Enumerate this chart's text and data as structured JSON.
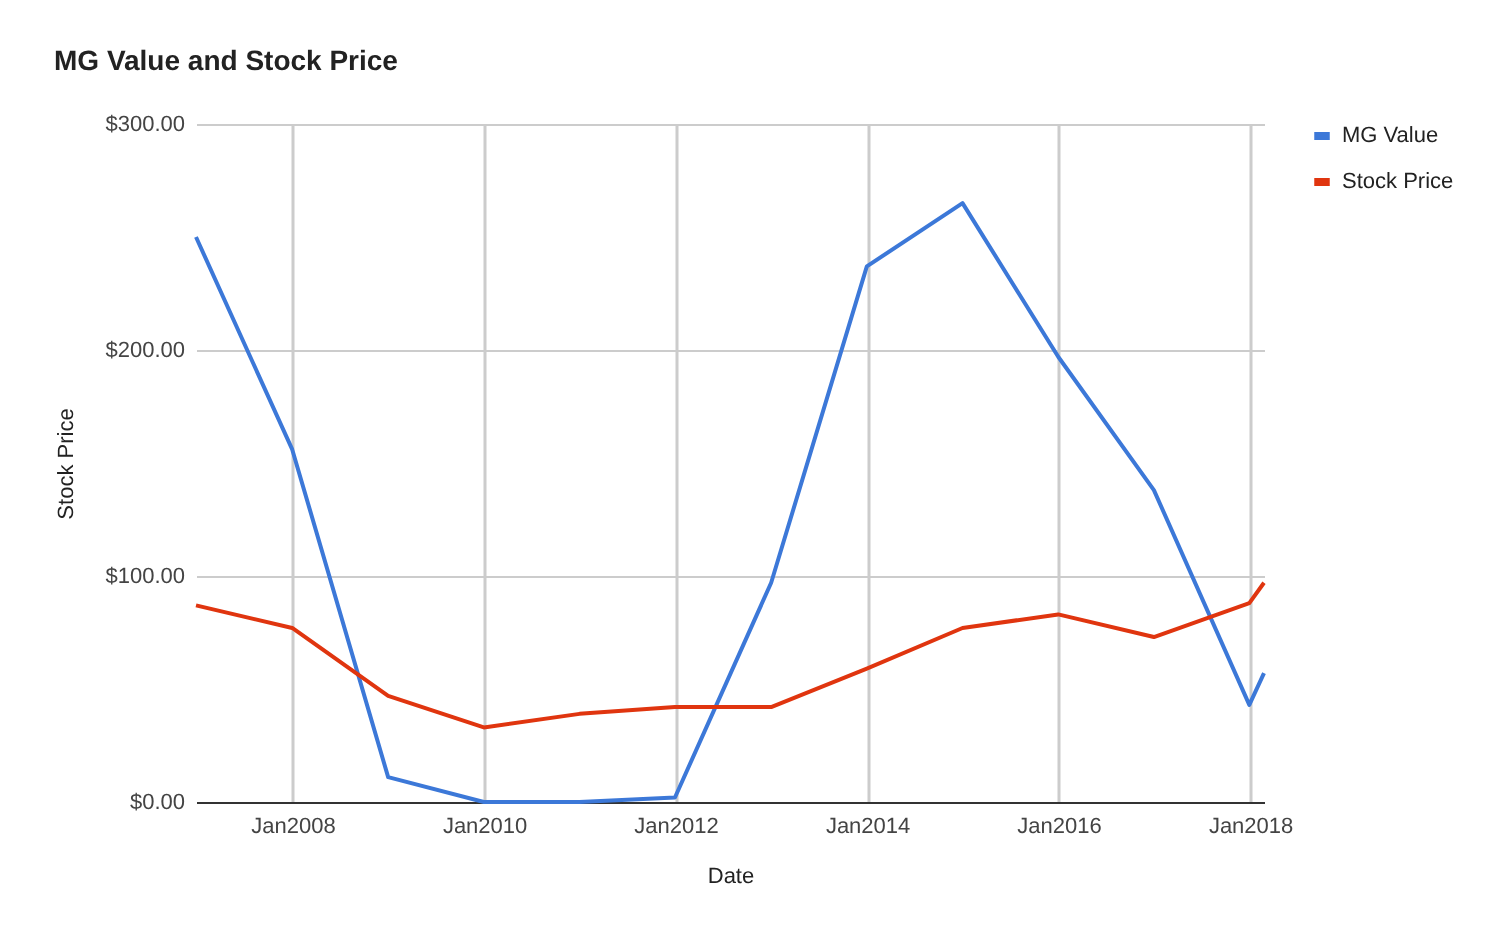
{
  "chart_data": {
    "type": "line",
    "title": "MG Value and Stock Price",
    "xlabel": "Date",
    "ylabel": "Stock Price",
    "x": [
      "2006-12-29",
      "2007-12-31",
      "2008-12-31",
      "2009-12-31",
      "2010-12-31",
      "2011-12-30",
      "2012-12-31",
      "2013-12-31",
      "2014-12-31",
      "2015-12-31",
      "2016-12-30",
      "2017-12-29",
      "2018-02-23"
    ],
    "series": [
      {
        "name": "MG Value",
        "color": "#3c78d8",
        "values": [
          250,
          156,
          11,
          0,
          0,
          2,
          97,
          237,
          265,
          197,
          138,
          43,
          57
        ]
      },
      {
        "name": "Stock Price",
        "color": "#e0350f",
        "values": [
          87,
          77,
          47,
          33,
          39,
          42,
          42,
          59,
          77,
          83,
          73,
          88,
          97
        ]
      }
    ],
    "xlim": [
      "2006-12-29",
      "2018-02-23"
    ],
    "xticks": [
      {
        "value": "2008-01-01",
        "label": "Jan2008"
      },
      {
        "value": "2010-01-01",
        "label": "Jan2010"
      },
      {
        "value": "2012-01-01",
        "label": "Jan2012"
      },
      {
        "value": "2014-01-01",
        "label": "Jan2014"
      },
      {
        "value": "2016-01-01",
        "label": "Jan2016"
      },
      {
        "value": "2018-01-01",
        "label": "Jan2018"
      }
    ],
    "ylim": [
      0,
      300
    ],
    "yticks": [
      {
        "value": 0,
        "label": "$0.00"
      },
      {
        "value": 100,
        "label": "$100.00"
      },
      {
        "value": 200,
        "label": "$200.00"
      },
      {
        "value": 300,
        "label": "$300.00"
      }
    ],
    "grid": true,
    "legend": "right"
  }
}
